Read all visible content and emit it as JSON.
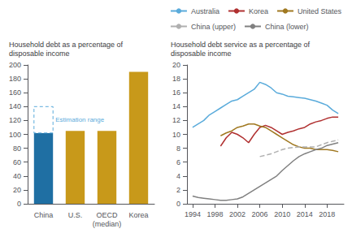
{
  "chart_data": [
    {
      "type": "bar",
      "title": "Household debt as a percentage of\ndisposable income",
      "categories": [
        "China",
        "U.S.",
        "OECD\n(median)",
        "Korea"
      ],
      "values": [
        102,
        105,
        105,
        190
      ],
      "upper": [
        140,
        105,
        105,
        190
      ],
      "colors": [
        "#1f6fa3",
        "#c8991a",
        "#c8991a",
        "#c8991a"
      ],
      "annotation": {
        "text": "Estimation range",
        "color": "#5aabdb"
      },
      "ylim": [
        0,
        200
      ],
      "yticks": [
        0,
        20,
        40,
        60,
        80,
        100,
        120,
        140,
        160,
        180,
        200
      ],
      "grid": false
    },
    {
      "type": "line",
      "title": "Household debt service as a percentage of\ndisposable income",
      "xlim": [
        1993,
        2021
      ],
      "xticks": [
        1994,
        1998,
        2002,
        2006,
        2010,
        2014,
        2018
      ],
      "ylim": [
        0,
        20
      ],
      "yticks": [
        0,
        2,
        4,
        6,
        8,
        10,
        12,
        14,
        16,
        18,
        20
      ],
      "grid": false,
      "legend": "upper right",
      "series": [
        {
          "name": "Australia",
          "color": "#5aabdb",
          "line_style": "solid",
          "x": [
            1994,
            1995,
            1996,
            1997,
            1998,
            1999,
            2000,
            2001,
            2002,
            2003,
            2004,
            2005,
            2006,
            2007,
            2008,
            2009,
            2010,
            2011,
            2012,
            2013,
            2014,
            2015,
            2016,
            2017,
            2018,
            2019,
            2020
          ],
          "values": [
            11.0,
            11.5,
            12.0,
            12.8,
            13.3,
            13.8,
            14.3,
            14.8,
            15.0,
            15.5,
            16.0,
            16.5,
            17.5,
            17.2,
            16.7,
            16.0,
            15.8,
            15.5,
            15.4,
            15.3,
            15.2,
            15.0,
            14.8,
            14.5,
            14.2,
            13.5,
            13.0
          ]
        },
        {
          "name": "Korea",
          "color": "#b03030",
          "line_style": "solid",
          "x": [
            1999,
            2000,
            2001,
            2002,
            2003,
            2004,
            2005,
            2006,
            2007,
            2008,
            2009,
            2010,
            2011,
            2012,
            2013,
            2014,
            2015,
            2016,
            2017,
            2018,
            2019,
            2020
          ],
          "values": [
            8.3,
            9.5,
            10.3,
            10.0,
            9.5,
            8.8,
            10.0,
            11.0,
            11.3,
            11.0,
            10.5,
            10.0,
            10.3,
            10.5,
            10.8,
            11.0,
            11.5,
            11.8,
            12.0,
            12.3,
            12.5,
            12.5
          ]
        },
        {
          "name": "United States",
          "color": "#a07820",
          "line_style": "solid",
          "x": [
            1999,
            2000,
            2001,
            2002,
            2003,
            2004,
            2005,
            2006,
            2007,
            2008,
            2009,
            2010,
            2011,
            2012,
            2013,
            2014,
            2015,
            2016,
            2017,
            2018,
            2019,
            2020
          ],
          "values": [
            9.8,
            10.2,
            10.5,
            11.0,
            11.2,
            11.5,
            11.5,
            11.2,
            11.0,
            10.5,
            10.0,
            9.5,
            9.0,
            8.5,
            8.2,
            8.0,
            8.0,
            7.8,
            7.8,
            7.8,
            7.7,
            7.5
          ]
        },
        {
          "name": "China (upper)",
          "color": "#b0b0b0",
          "line_style": "dashed",
          "x": [
            2006,
            2007,
            2008,
            2009,
            2010,
            2011,
            2012,
            2013,
            2014,
            2015,
            2016,
            2017,
            2018,
            2019,
            2020
          ],
          "values": [
            6.8,
            7.0,
            7.2,
            7.5,
            7.8,
            8.0,
            8.1,
            8.2,
            8.2,
            8.2,
            8.2,
            8.5,
            8.8,
            9.0,
            9.2
          ]
        },
        {
          "name": "China (lower)",
          "color": "#808080",
          "line_style": "solid",
          "x": [
            1994,
            1995,
            1996,
            1997,
            1998,
            1999,
            2000,
            2001,
            2002,
            2003,
            2004,
            2005,
            2006,
            2007,
            2008,
            2009,
            2010,
            2011,
            2012,
            2013,
            2014,
            2015,
            2016,
            2017,
            2018,
            2019,
            2020
          ],
          "values": [
            1.1,
            0.9,
            0.8,
            0.7,
            0.6,
            0.5,
            0.5,
            0.6,
            0.7,
            1.0,
            1.5,
            2.0,
            2.5,
            3.0,
            3.5,
            4.0,
            4.8,
            5.5,
            6.2,
            6.8,
            7.2,
            7.5,
            7.8,
            8.0,
            8.4,
            8.6,
            8.8
          ]
        }
      ]
    }
  ]
}
